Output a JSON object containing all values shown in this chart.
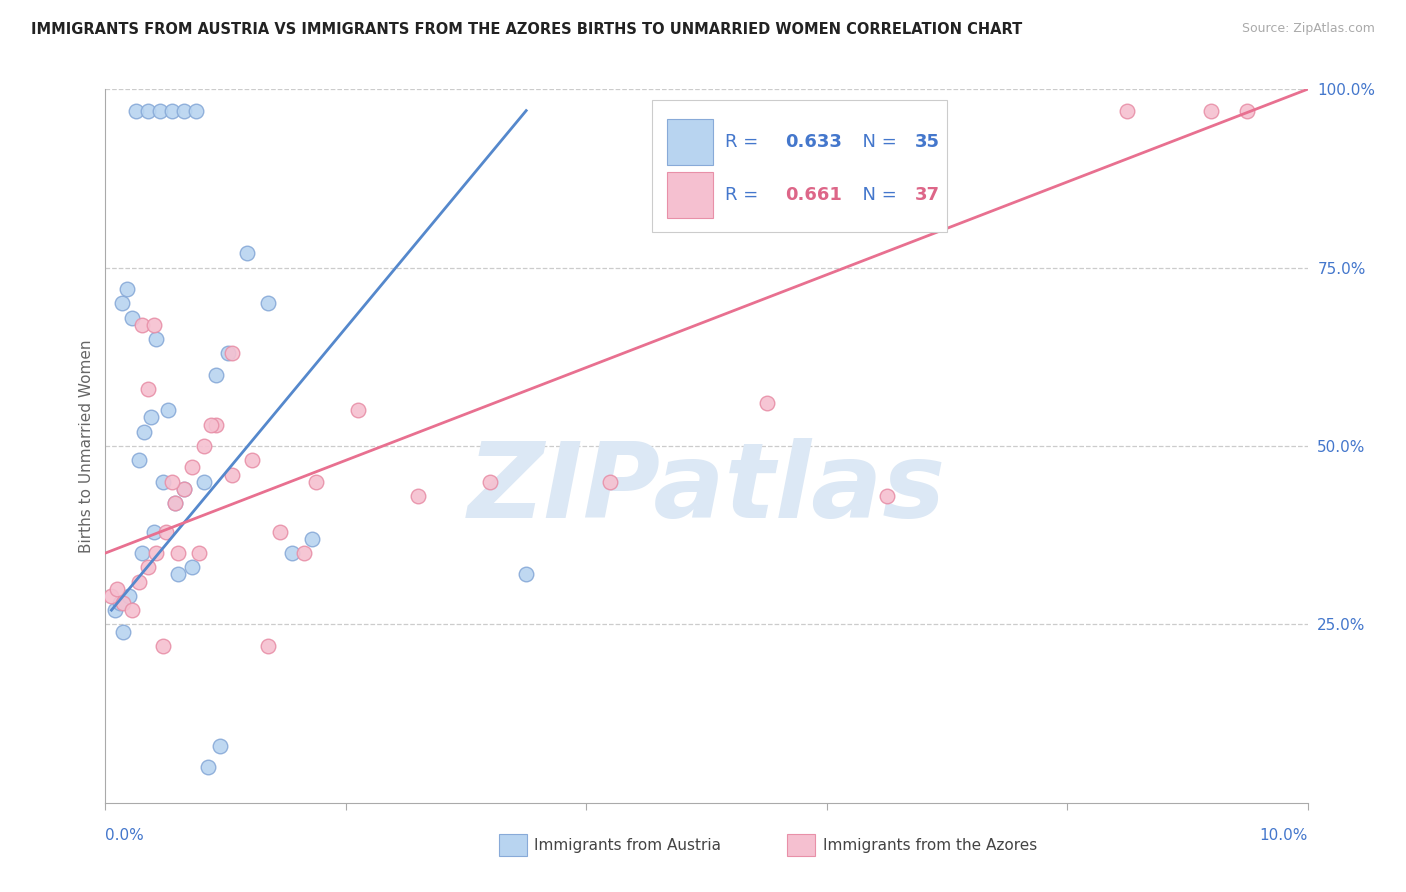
{
  "title": "IMMIGRANTS FROM AUSTRIA VS IMMIGRANTS FROM THE AZORES BIRTHS TO UNMARRIED WOMEN CORRELATION CHART",
  "source": "Source: ZipAtlas.com",
  "ylabel": "Births to Unmarried Women",
  "xlim": [
    0.0,
    10.0
  ],
  "ylim": [
    0.0,
    100.0
  ],
  "yticks_right": [
    25.0,
    50.0,
    75.0,
    100.0
  ],
  "ytick_labels_right": [
    "25.0%",
    "50.0%",
    "75.0%",
    "100.0%"
  ],
  "grid_color": "#cccccc",
  "background_color": "#ffffff",
  "watermark_text": "ZIPatlas",
  "watermark_color": "#dce8f5",
  "austria_color": "#b8d4f0",
  "austria_edge": "#88aad8",
  "azores_color": "#f5c0d0",
  "azores_edge": "#e890a8",
  "austria_line_color": "#5588cc",
  "azores_line_color": "#e87090",
  "blue_text_color": "#4477cc",
  "pink_text_color": "#dd6688",
  "legend_text_color": "#4477cc",
  "austria_scatter_x": [
    0.08,
    0.14,
    0.18,
    0.22,
    0.28,
    0.32,
    0.38,
    0.42,
    0.48,
    0.52,
    0.58,
    0.65,
    0.72,
    0.82,
    0.92,
    1.02,
    1.18,
    1.35,
    1.55,
    1.72,
    0.15,
    0.25,
    0.35,
    0.45,
    0.55,
    0.65,
    0.75,
    0.85,
    3.5,
    0.12,
    0.2,
    0.3,
    0.4,
    0.6,
    0.95
  ],
  "austria_scatter_y": [
    27,
    70,
    72,
    68,
    48,
    52,
    54,
    65,
    45,
    55,
    42,
    44,
    33,
    45,
    60,
    63,
    77,
    70,
    35,
    37,
    24,
    97,
    97,
    97,
    97,
    97,
    97,
    5,
    32,
    28,
    29,
    35,
    38,
    32,
    8
  ],
  "azores_scatter_x": [
    0.05,
    0.1,
    0.15,
    0.22,
    0.28,
    0.35,
    0.42,
    0.5,
    0.58,
    0.65,
    0.72,
    0.82,
    0.92,
    1.05,
    1.22,
    1.45,
    1.75,
    2.1,
    2.6,
    3.2,
    4.2,
    5.5,
    6.5,
    8.5,
    9.2,
    9.5,
    0.3,
    0.4,
    0.35,
    0.48,
    0.6,
    1.05,
    1.35,
    0.78,
    0.55,
    0.88,
    1.65
  ],
  "azores_scatter_y": [
    29,
    30,
    28,
    27,
    31,
    33,
    35,
    38,
    42,
    44,
    47,
    50,
    53,
    46,
    48,
    38,
    45,
    55,
    43,
    45,
    45,
    56,
    43,
    97,
    97,
    97,
    67,
    67,
    58,
    22,
    35,
    63,
    22,
    35,
    45,
    53,
    35
  ],
  "austria_line_x": [
    0.05,
    3.5
  ],
  "austria_line_y": [
    27.0,
    97.0
  ],
  "azores_line_x": [
    0.0,
    10.0
  ],
  "azores_line_y": [
    35.0,
    100.0
  ]
}
